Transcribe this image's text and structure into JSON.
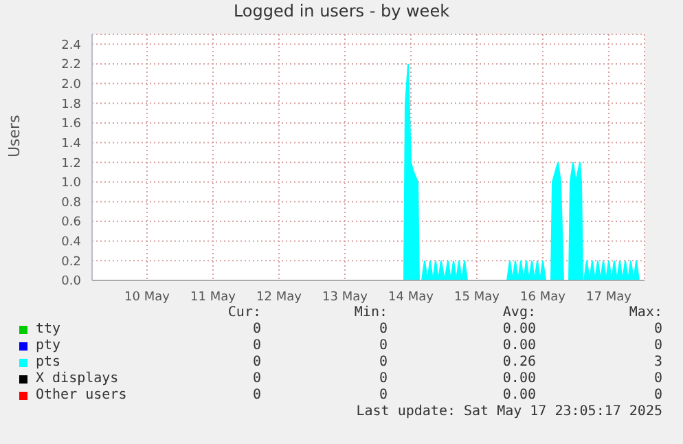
{
  "chart_data": {
    "type": "area",
    "title": "Logged in users - by week",
    "ylabel": "Users",
    "xlim": [
      "2025-05-09T16:00",
      "2025-05-18T01:00"
    ],
    "xticks": [
      {
        "value": "2025-05-10T12:00",
        "label": "10 May"
      },
      {
        "value": "2025-05-11T12:00",
        "label": "11 May"
      },
      {
        "value": "2025-05-12T12:00",
        "label": "12 May"
      },
      {
        "value": "2025-05-13T12:00",
        "label": "13 May"
      },
      {
        "value": "2025-05-14T12:00",
        "label": "14 May"
      },
      {
        "value": "2025-05-15T12:00",
        "label": "15 May"
      },
      {
        "value": "2025-05-16T12:00",
        "label": "16 May"
      },
      {
        "value": "2025-05-17T12:00",
        "label": "17 May"
      }
    ],
    "ylim": [
      0,
      2.5
    ],
    "yticks": [
      {
        "value": 0,
        "label": "0.0"
      },
      {
        "value": 0.2,
        "label": "0.2"
      },
      {
        "value": 0.4,
        "label": "0.4"
      },
      {
        "value": 0.6,
        "label": "0.6"
      },
      {
        "value": 0.8,
        "label": "0.8"
      },
      {
        "value": 1,
        "label": "1.0"
      },
      {
        "value": 1.2,
        "label": "1.2"
      },
      {
        "value": 1.4,
        "label": "1.4"
      },
      {
        "value": 1.6,
        "label": "1.6"
      },
      {
        "value": 1.8,
        "label": "1.8"
      },
      {
        "value": 2,
        "label": "2.0"
      },
      {
        "value": 2.2,
        "label": "2.2"
      },
      {
        "value": 2.4,
        "label": "2.4"
      }
    ],
    "grid": true,
    "legend": "bottom",
    "series": [
      {
        "name": "tty",
        "color": "#00cc00"
      },
      {
        "name": "pty",
        "color": "#0000ff"
      },
      {
        "name": "pts",
        "color": "#00ffff",
        "x": [
          "2025-05-09T16:00",
          "2025-05-14T09:30",
          "2025-05-14T10:00",
          "2025-05-14T11:00",
          "2025-05-14T12:00",
          "2025-05-14T13:00",
          "2025-05-14T14:30",
          "2025-05-14T15:00",
          "2025-05-14T16:00",
          "2025-05-14T17:00",
          "2025-05-14T18:00",
          "2025-05-14T19:00",
          "2025-05-14T20:00",
          "2025-05-14T21:00",
          "2025-05-14T22:00",
          "2025-05-14T23:00",
          "2025-05-15T00:15",
          "2025-05-15T01:30",
          "2025-05-15T02:30",
          "2025-05-15T03:30",
          "2025-05-15T04:30",
          "2025-05-15T05:30",
          "2025-05-15T06:30",
          "2025-05-15T07:30",
          "2025-05-15T08:30",
          "2025-05-15T23:00",
          "2025-05-16T00:00",
          "2025-05-16T01:00",
          "2025-05-16T02:00",
          "2025-05-16T03:00",
          "2025-05-16T04:00",
          "2025-05-16T05:00",
          "2025-05-16T06:00",
          "2025-05-16T07:00",
          "2025-05-16T08:00",
          "2025-05-16T09:00",
          "2025-05-16T10:00",
          "2025-05-16T11:00",
          "2025-05-16T12:00",
          "2025-05-16T13:00",
          "2025-05-16T15:00",
          "2025-05-16T15:30",
          "2025-05-16T17:30",
          "2025-05-16T18:30",
          "2025-05-16T19:30",
          "2025-05-16T20:00",
          "2025-05-16T21:30",
          "2025-05-16T22:00",
          "2025-05-16T23:00",
          "2025-05-17T00:00",
          "2025-05-17T01:30",
          "2025-05-17T02:00",
          "2025-05-17T02:30",
          "2025-05-17T03:00",
          "2025-05-17T04:00",
          "2025-05-17T05:00",
          "2025-05-17T06:00",
          "2025-05-17T07:00",
          "2025-05-17T08:00",
          "2025-05-17T09:00",
          "2025-05-17T10:00",
          "2025-05-17T11:00",
          "2025-05-17T12:00",
          "2025-05-17T13:00",
          "2025-05-17T14:00",
          "2025-05-17T15:00",
          "2025-05-17T16:00",
          "2025-05-17T17:00",
          "2025-05-17T18:00",
          "2025-05-17T19:00",
          "2025-05-17T20:00",
          "2025-05-17T21:00",
          "2025-05-17T22:00",
          "2025-05-17T23:00",
          "2025-05-18T01:00"
        ],
        "values": [
          0,
          0,
          1.8,
          2.2,
          1.2,
          1.1,
          1,
          0,
          0,
          0.2,
          0,
          0.2,
          0,
          0.2,
          0,
          0.2,
          0,
          0.2,
          0,
          0.2,
          0,
          0.2,
          0,
          0.2,
          0,
          0,
          0.2,
          0,
          0.2,
          0,
          0.2,
          0,
          0.2,
          0,
          0.2,
          0,
          0.2,
          0,
          0.2,
          0,
          0,
          1,
          1.2,
          1,
          0,
          0,
          0,
          1,
          1.2,
          1,
          1.2,
          1,
          0,
          0,
          0.2,
          0,
          0.2,
          0,
          0.2,
          0,
          0.2,
          0,
          0.2,
          0,
          0.2,
          0,
          0.2,
          0,
          0.2,
          0,
          0.2,
          0,
          0.2,
          0,
          0
        ]
      },
      {
        "name": "X displays",
        "color": "#000000"
      },
      {
        "name": "Other users",
        "color": "#ff0000"
      }
    ],
    "annotations": [
      "Cur:",
      "Min:",
      "Avg:",
      "Max:",
      "0",
      "0",
      "0.00",
      "0",
      "0",
      "0",
      "0.00",
      "0",
      "0",
      "0",
      "0.26",
      "3",
      "0",
      "0",
      "0.00",
      "0",
      "0",
      "0",
      "0.00",
      "0",
      "Last update: Sat May 17 23:05:17 2025"
    ]
  }
}
